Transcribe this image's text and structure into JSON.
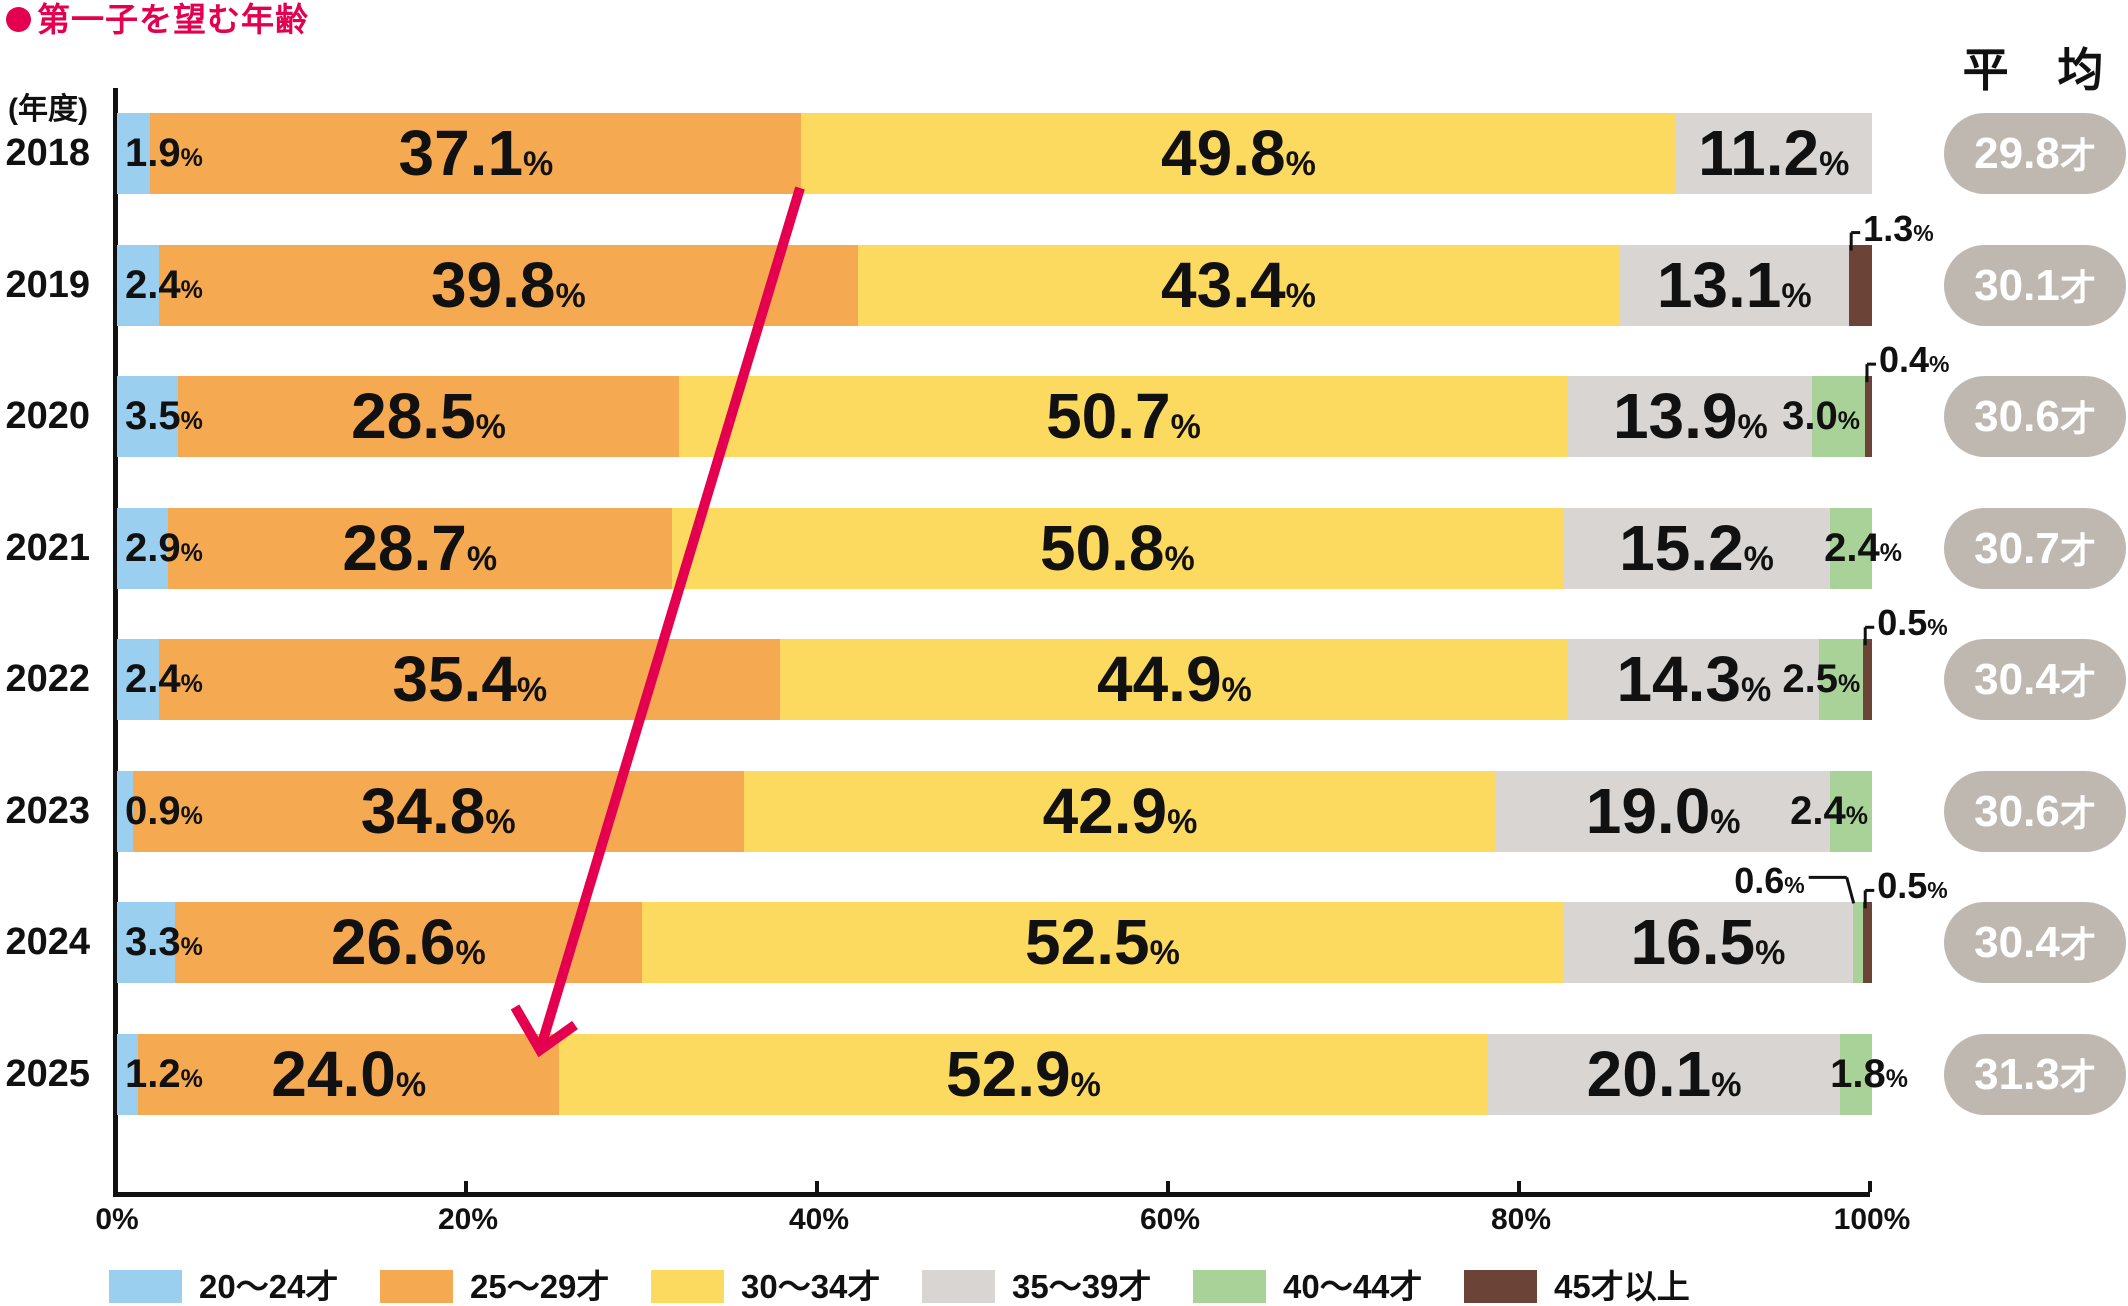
{
  "title": "第一子を望む年齢",
  "y_axis_unit": "(年度)",
  "average_header": "平 均",
  "age_suffix": "才",
  "colors": {
    "accent": "#E4004F",
    "blue": "#9ACFEF",
    "orange": "#F5AA52",
    "yellow": "#FCDA60",
    "gray": "#D8D5D2",
    "green": "#A9D299",
    "brown": "#6B4437",
    "pill": "#BEB8B1",
    "text": "#111111"
  },
  "chart_data": {
    "type": "bar",
    "stacked": true,
    "orientation": "horizontal",
    "title": "第一子を望む年齢",
    "categories": [
      "2018",
      "2019",
      "2020",
      "2021",
      "2022",
      "2023",
      "2024",
      "2025"
    ],
    "series": [
      {
        "name": "20〜24才",
        "color_key": "blue",
        "values": [
          1.9,
          2.4,
          3.5,
          2.9,
          2.4,
          0.9,
          3.3,
          1.2
        ]
      },
      {
        "name": "25〜29才",
        "color_key": "orange",
        "values": [
          37.1,
          39.8,
          28.5,
          28.7,
          35.4,
          34.8,
          26.6,
          24.0
        ]
      },
      {
        "name": "30〜34才",
        "color_key": "yellow",
        "values": [
          49.8,
          43.4,
          50.7,
          50.8,
          44.9,
          42.9,
          52.5,
          52.9
        ]
      },
      {
        "name": "35〜39才",
        "color_key": "gray",
        "values": [
          11.2,
          13.1,
          13.9,
          15.2,
          14.3,
          19.0,
          16.5,
          20.1
        ]
      },
      {
        "name": "40〜44才",
        "color_key": "green",
        "values": [
          null,
          null,
          3.0,
          2.4,
          2.5,
          2.4,
          0.6,
          1.8
        ]
      },
      {
        "name": "45才以上",
        "color_key": "brown",
        "values": [
          null,
          1.3,
          0.4,
          null,
          0.5,
          null,
          0.5,
          null
        ]
      }
    ],
    "averages": [
      "29.8",
      "30.1",
      "30.6",
      "30.7",
      "30.4",
      "30.6",
      "30.4",
      "31.3"
    ],
    "x_ticks": [
      "0%",
      "20%",
      "40%",
      "60%",
      "80%",
      "100%"
    ],
    "xlim": [
      0,
      100
    ],
    "legend_position": "bottom"
  }
}
